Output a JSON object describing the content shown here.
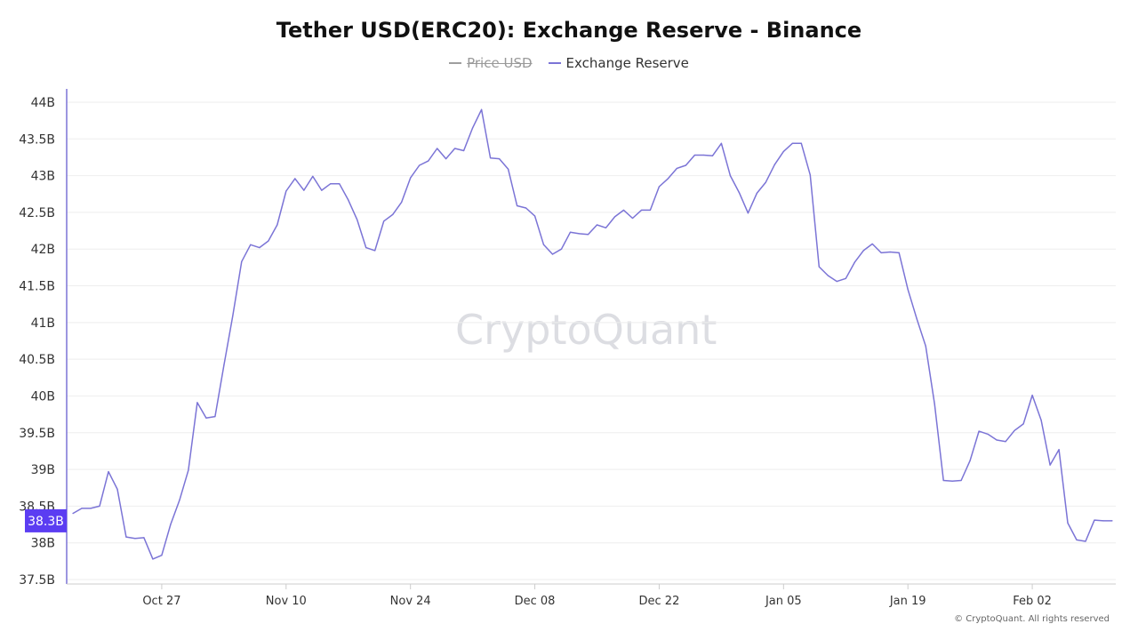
{
  "title": "Tether USD(ERC20): Exchange Reserve - Binance",
  "legend": [
    {
      "label": "Price USD",
      "color": "#9e9e9e",
      "hidden": true
    },
    {
      "label": "Exchange Reserve",
      "color": "#7b74d6",
      "hidden": false
    }
  ],
  "watermark": "CryptoQuant",
  "copyright": "© CryptoQuant. All rights reserved",
  "colors": {
    "line": "#7b74d6",
    "cursor": "#5b3df2",
    "grid": "#eeeeee",
    "axis": "#cccccc"
  },
  "chart_data": {
    "type": "line",
    "title": "Tether USD(ERC20): Exchange Reserve - Binance",
    "xlabel": "",
    "ylabel": "",
    "ylim": [
      37.5,
      44
    ],
    "y_unit": "B",
    "y_ticks": [
      37.5,
      38,
      38.5,
      39,
      39.5,
      40,
      40.5,
      41,
      41.5,
      42,
      42.5,
      43,
      43.5,
      44
    ],
    "y_tick_labels": [
      "37.5B",
      "38B",
      "38.5B",
      "39B",
      "39.5B",
      "40B",
      "40.5B",
      "41B",
      "41.5B",
      "42B",
      "42.5B",
      "43B",
      "43.5B",
      "44B"
    ],
    "x_ticks": [
      "Oct 27",
      "Nov 10",
      "Nov 24",
      "Dec 08",
      "Dec 22",
      "Jan 05",
      "Jan 19",
      "Feb 02"
    ],
    "x_ticks_day": [
      10,
      24,
      38,
      52,
      66,
      80,
      94,
      108
    ],
    "x_range_day": [
      -0.3,
      117.4
    ],
    "grid": true,
    "cursor_label": "38.3B",
    "cursor_value": 38.3,
    "series": [
      {
        "name": "Exchange Reserve",
        "color": "#7b74d6",
        "x_day": [
          0,
          1,
          2,
          3,
          4,
          5,
          6,
          7,
          8,
          9,
          10,
          11,
          12,
          13,
          14,
          15,
          16,
          17,
          18,
          19,
          20,
          21,
          22,
          23,
          24,
          25,
          26,
          27,
          28,
          29,
          30,
          31,
          32,
          33,
          34,
          35,
          36,
          37,
          38,
          39,
          40,
          41,
          42,
          43,
          44,
          45,
          46,
          47,
          48,
          49,
          50,
          51,
          52,
          53,
          54,
          55,
          56,
          57,
          58,
          59,
          60,
          61,
          62,
          63,
          64,
          65,
          66,
          67,
          68,
          69,
          70,
          71,
          72,
          73,
          74,
          75,
          76,
          77,
          78,
          79,
          80,
          81,
          82,
          83,
          84,
          85,
          86,
          87,
          88,
          89,
          90,
          91,
          92,
          93,
          94,
          95,
          96,
          97,
          98,
          99,
          100,
          101,
          102,
          103,
          104,
          105,
          106,
          107,
          108,
          109,
          110,
          111,
          112,
          113,
          114,
          115,
          116,
          117
        ],
        "values": [
          38.4,
          38.47,
          38.47,
          38.5,
          38.97,
          38.73,
          38.08,
          38.06,
          38.07,
          37.78,
          37.83,
          38.25,
          38.58,
          38.99,
          39.91,
          39.7,
          39.72,
          40.42,
          41.09,
          41.83,
          42.06,
          42.02,
          42.11,
          42.33,
          42.79,
          42.96,
          42.8,
          42.99,
          42.8,
          42.89,
          42.89,
          42.67,
          42.4,
          42.02,
          41.98,
          42.38,
          42.47,
          42.64,
          42.97,
          43.14,
          43.2,
          43.37,
          43.23,
          43.37,
          43.34,
          43.65,
          43.9,
          43.24,
          43.23,
          43.09,
          42.59,
          42.56,
          42.45,
          42.06,
          41.93,
          42.0,
          42.23,
          42.21,
          42.2,
          42.33,
          42.29,
          42.44,
          42.53,
          42.42,
          42.53,
          42.53,
          42.85,
          42.96,
          43.1,
          43.14,
          43.28,
          43.28,
          43.27,
          43.44,
          43.0,
          42.77,
          42.49,
          42.76,
          42.91,
          43.15,
          43.33,
          43.44,
          43.44,
          43.01,
          41.76,
          41.64,
          41.56,
          41.6,
          41.82,
          41.98,
          42.07,
          41.95,
          41.96,
          41.95,
          41.45,
          41.05,
          40.68,
          39.89,
          38.85,
          38.84,
          38.85,
          39.12,
          39.52,
          39.48,
          39.4,
          39.38,
          39.53,
          39.62,
          40.01,
          39.67,
          39.06,
          39.27,
          38.27,
          38.04,
          38.02,
          38.31,
          38.3,
          38.3
        ]
      }
    ]
  }
}
